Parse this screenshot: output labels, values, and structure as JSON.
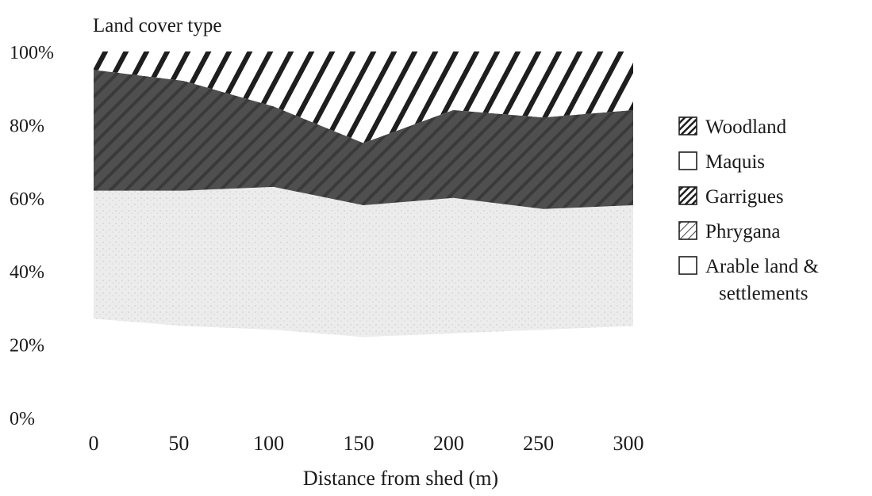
{
  "chart_data": {
    "type": "area",
    "stacked": true,
    "title": "Land cover type",
    "xlabel": "Distance from shed (m)",
    "ylabel": "",
    "x": [
      0,
      50,
      100,
      150,
      200,
      250,
      300
    ],
    "xticks": [
      "0",
      "50",
      "100",
      "150",
      "200",
      "250",
      "300"
    ],
    "xlim": [
      0,
      300
    ],
    "ylim": [
      0,
      100
    ],
    "yticks": [
      "0%",
      "20%",
      "40%",
      "60%",
      "80%",
      "100%"
    ],
    "ytick_values": [
      0,
      20,
      40,
      60,
      80,
      100
    ],
    "grid": false,
    "legend_position": "right",
    "series": [
      {
        "name": "Arable land &\nsettlements",
        "label_lines": [
          "Arable land &",
          "settlements"
        ],
        "pattern": "plain",
        "values": [
          27,
          25,
          24,
          22,
          23,
          24,
          25
        ]
      },
      {
        "name": "Phrygana",
        "label_lines": [
          "Phrygana"
        ],
        "pattern": "speckled",
        "values": [
          35,
          37,
          39,
          36,
          37,
          33,
          33
        ]
      },
      {
        "name": "Garrigues",
        "label_lines": [
          "Garrigues"
        ],
        "pattern": "hatched",
        "values": [
          33,
          30,
          22,
          17,
          24,
          25,
          26
        ]
      },
      {
        "name": "Maquis",
        "label_lines": [
          "Maquis"
        ],
        "pattern": "plain",
        "values": [
          0,
          0,
          0,
          0,
          0,
          0,
          0
        ]
      },
      {
        "name": "Woodland",
        "label_lines": [
          "Woodland"
        ],
        "pattern": "hatched",
        "values": [
          5,
          8,
          15,
          25,
          16,
          18,
          16
        ]
      }
    ],
    "legend_order": [
      "Woodland",
      "Maquis",
      "Garrigues",
      "Phrygana",
      "Arable land &\nsettlements"
    ],
    "colors": {
      "arable": "#ffffff",
      "phrygana": "#e6e6e6",
      "garrigues": "#555555",
      "maquis": "#ffffff",
      "woodland_stroke": "#1e1e1e",
      "text": "#1a1a1a"
    }
  }
}
